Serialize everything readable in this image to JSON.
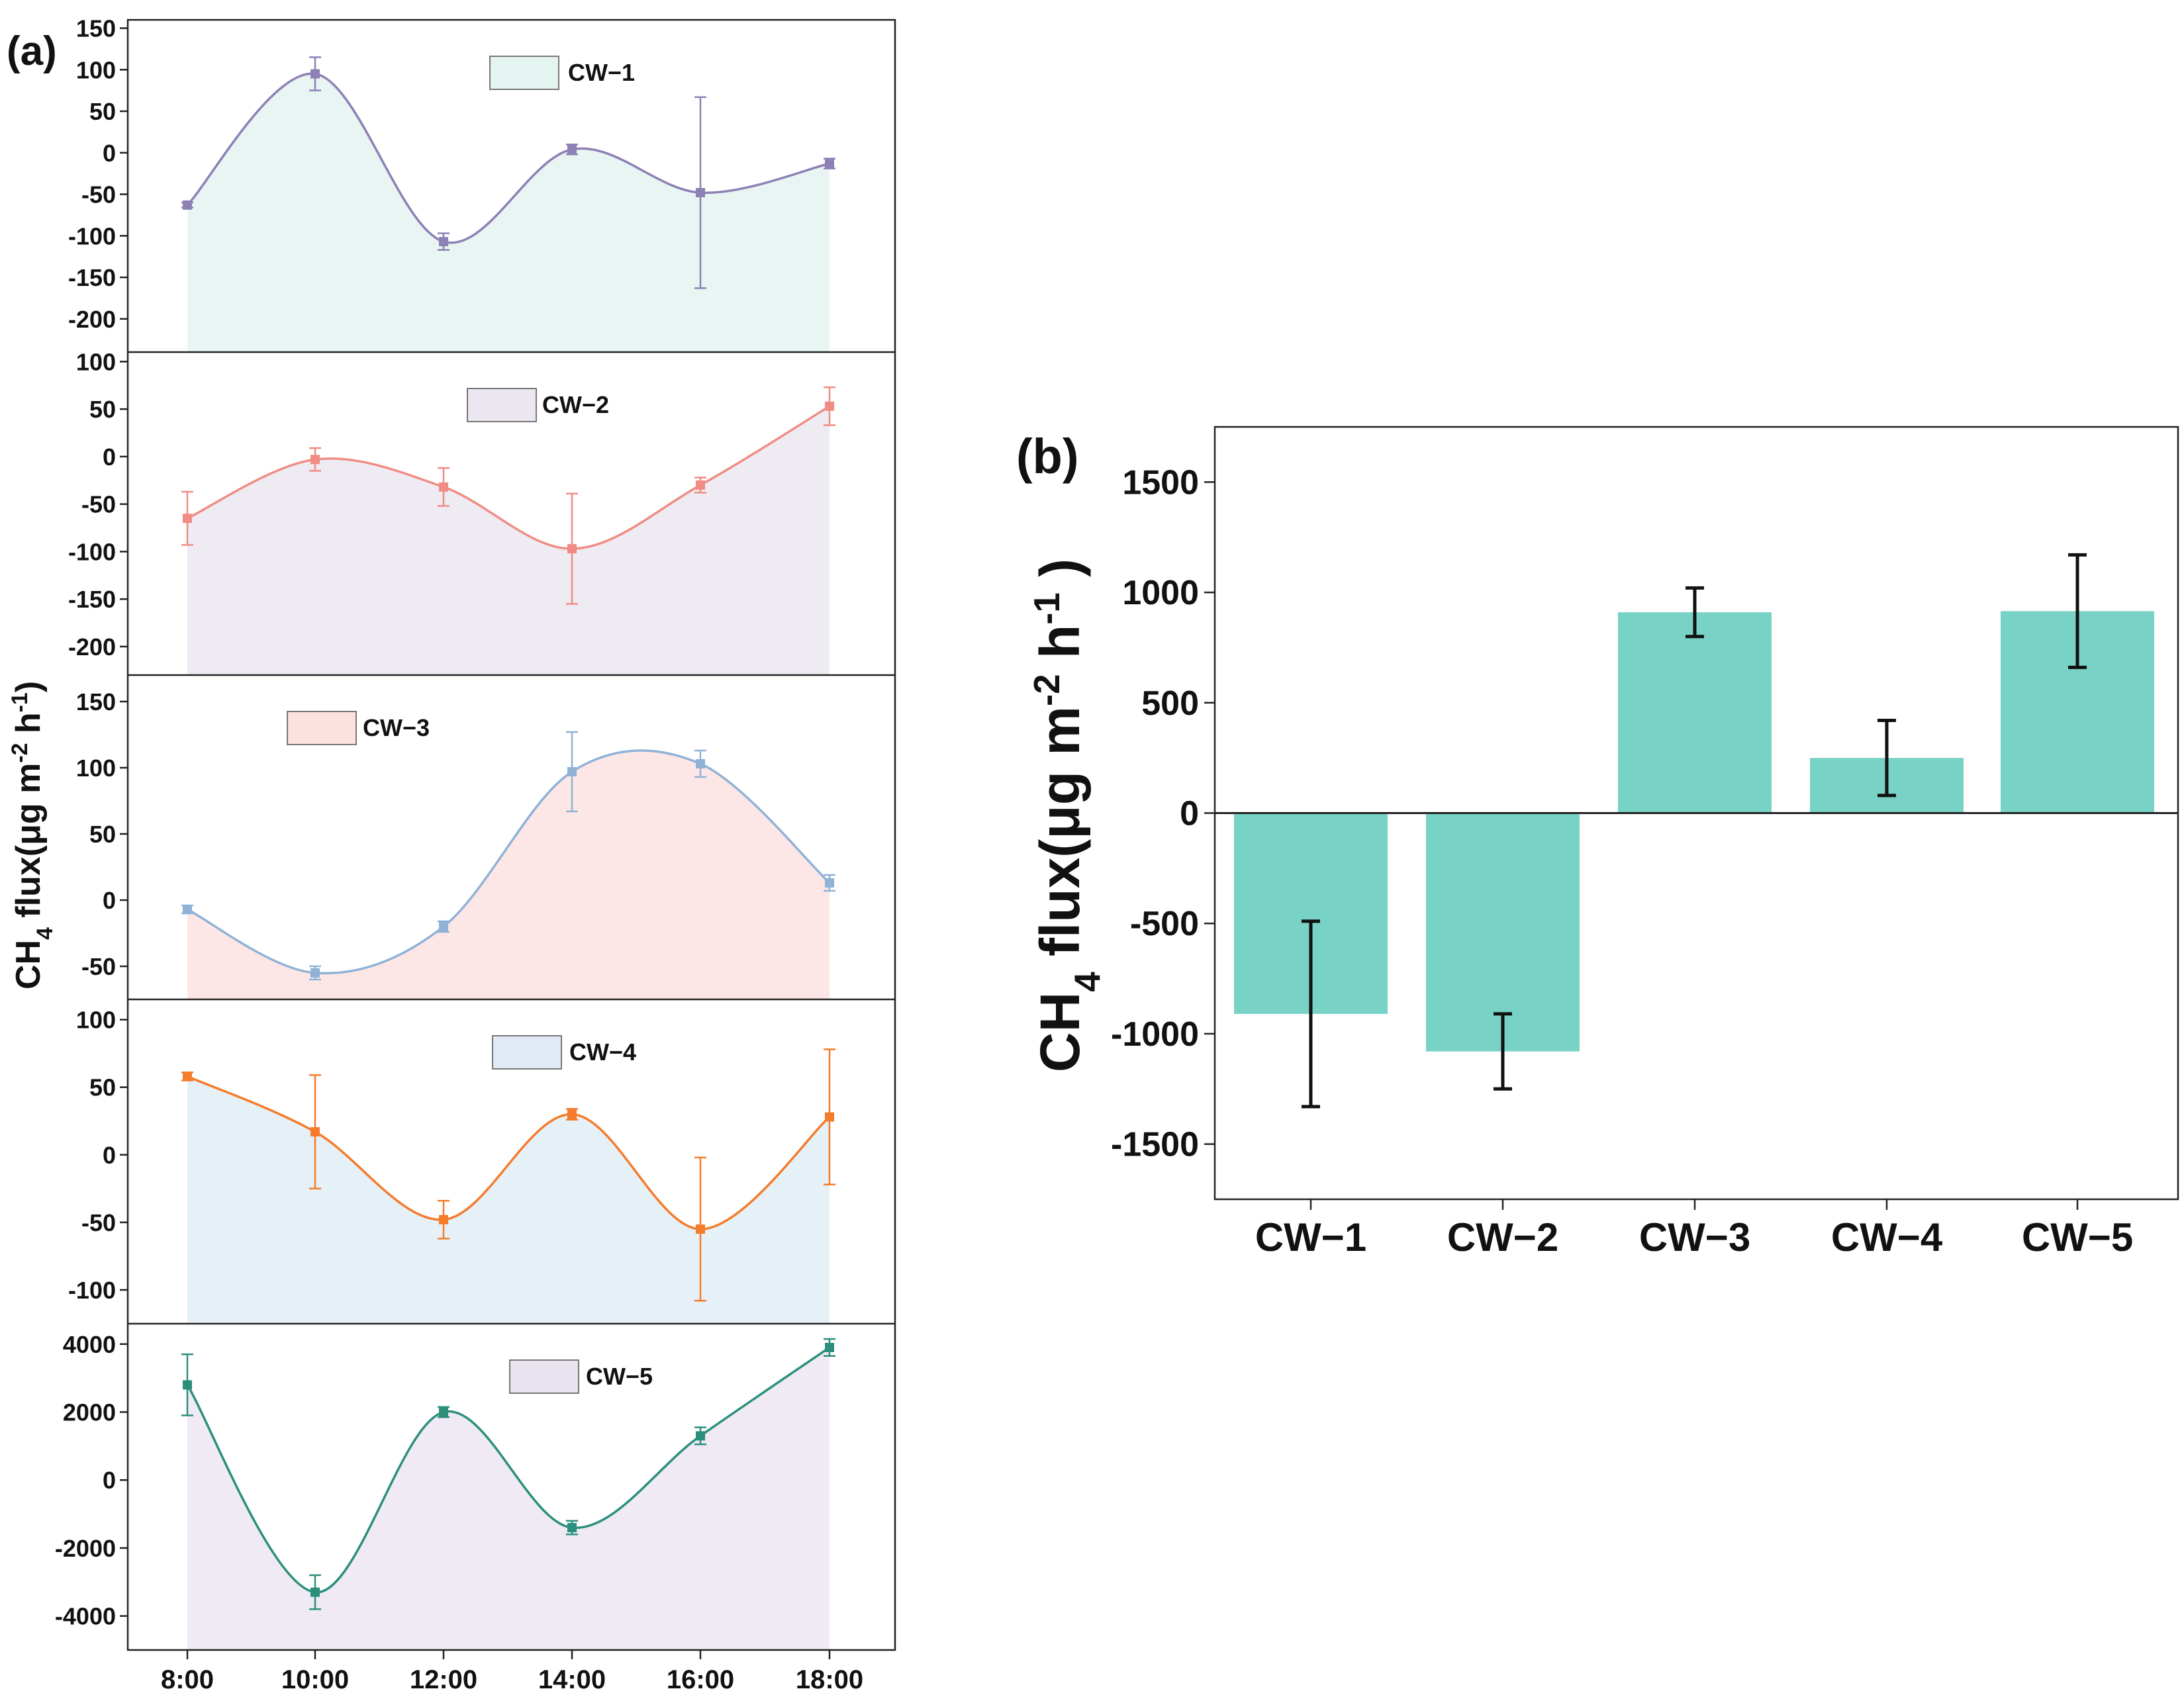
{
  "panel_a_label": "(a)",
  "panel_b_label": "(b)",
  "chart_data": [
    {
      "type": "line",
      "panel": "(a)",
      "ylabel": "CH4 flux(μg m-2 h-1)",
      "ylabel_parts": {
        "base": "CH",
        "sub": "4",
        "mid": " flux(μg m",
        "sup1": "-2",
        "mid2": " h",
        "sup2": "-1",
        "end": ")"
      },
      "x": [
        "8:00",
        "10:00",
        "12:00",
        "14:00",
        "16:00",
        "18:00"
      ],
      "subplots": [
        {
          "name": "CW-1",
          "legend": "CW−1",
          "values": [
            -63,
            95,
            -107,
            4,
            -48,
            -13
          ],
          "errors": [
            3,
            20,
            10,
            6,
            115,
            6
          ],
          "ylim": [
            -240,
            160
          ],
          "yticks": [
            150,
            100,
            50,
            0,
            -50,
            -100,
            -150,
            -200
          ],
          "ytick_labels": [
            "150",
            "100",
            "50",
            "0",
            "-50",
            "-100",
            "-150",
            "-200"
          ],
          "line_color": "#8d80b5",
          "fill_color": "#e8f5f3",
          "legend_color": "#e3f4f1"
        },
        {
          "name": "CW-2",
          "legend": "CW−2",
          "values": [
            -65,
            -3,
            -32,
            -97,
            -30,
            53
          ],
          "errors": [
            28,
            12,
            20,
            58,
            8,
            20
          ],
          "ylim": [
            -230,
            110
          ],
          "yticks": [
            100,
            50,
            0,
            -50,
            -100,
            -150,
            -200
          ],
          "ytick_labels": [
            "100",
            "50",
            "0",
            "-50",
            "-100",
            "-150",
            "-200"
          ],
          "line_color": "#f08c84",
          "fill_color": "#efebf3",
          "legend_color": "#ebe6ef"
        },
        {
          "name": "CW-3",
          "legend": "CW−3",
          "values": [
            -7,
            -55,
            -20,
            97,
            103,
            13
          ],
          "errors": [
            3,
            5,
            4,
            30,
            10,
            6
          ],
          "ylim": [
            -75,
            170
          ],
          "yticks": [
            150,
            100,
            50,
            0,
            -50
          ],
          "ytick_labels": [
            "150",
            "100",
            "50",
            "0",
            "-50"
          ],
          "line_color": "#8fb2d6",
          "fill_color": "#fde7e6",
          "legend_color": "#fbe1df"
        },
        {
          "name": "CW-4",
          "legend": "CW−4",
          "values": [
            58,
            17,
            -48,
            30,
            -55,
            28
          ],
          "errors": [
            3,
            42,
            14,
            4,
            53,
            50
          ],
          "ylim": [
            -125,
            115
          ],
          "yticks": [
            100,
            50,
            0,
            -50,
            -100
          ],
          "ytick_labels": [
            "100",
            "50",
            "0",
            "-50",
            "-100"
          ],
          "line_color": "#f47c2c",
          "fill_color": "#e6f0f7",
          "legend_color": "#dfeaf4"
        },
        {
          "name": "CW-5",
          "legend": "CW−5",
          "values": [
            2800,
            -3300,
            2000,
            -1400,
            1300,
            3900
          ],
          "errors": [
            900,
            500,
            150,
            200,
            250,
            250
          ],
          "ylim": [
            -5000,
            4600
          ],
          "yticks": [
            4000,
            2000,
            0,
            -2000,
            -4000
          ],
          "ytick_labels": [
            "4000",
            "2000",
            "0",
            "-2000",
            "-4000"
          ],
          "line_color": "#2b8f7c",
          "fill_color": "#efeaf3",
          "legend_color": "#e9e3ef"
        }
      ]
    },
    {
      "type": "bar",
      "panel": "(b)",
      "categories": [
        "CW-1",
        "CW-2",
        "CW-3",
        "CW-4",
        "CW-5"
      ],
      "category_labels": [
        "CW−1",
        "CW−2",
        "CW−3",
        "CW−4",
        "CW−5"
      ],
      "values": [
        -910,
        -1080,
        910,
        250,
        915
      ],
      "errors": [
        420,
        170,
        110,
        170,
        255
      ],
      "ylim": [
        -1750,
        1750
      ],
      "yticks": [
        1500,
        1000,
        500,
        0,
        -500,
        -1000,
        -1500
      ],
      "ytick_labels": [
        "1500",
        "1000",
        "500",
        "0",
        "-500",
        "-1000",
        "-1500"
      ],
      "ylabel": "CH4 flux(μg m-2 h-1 )",
      "ylabel_parts": {
        "base": "CH",
        "sub": "4",
        "mid": " flux(μg m",
        "sup1": "-2",
        "mid2": " h",
        "sup2": "-1",
        "end": " )"
      },
      "bar_color": "#79d2c6"
    }
  ]
}
